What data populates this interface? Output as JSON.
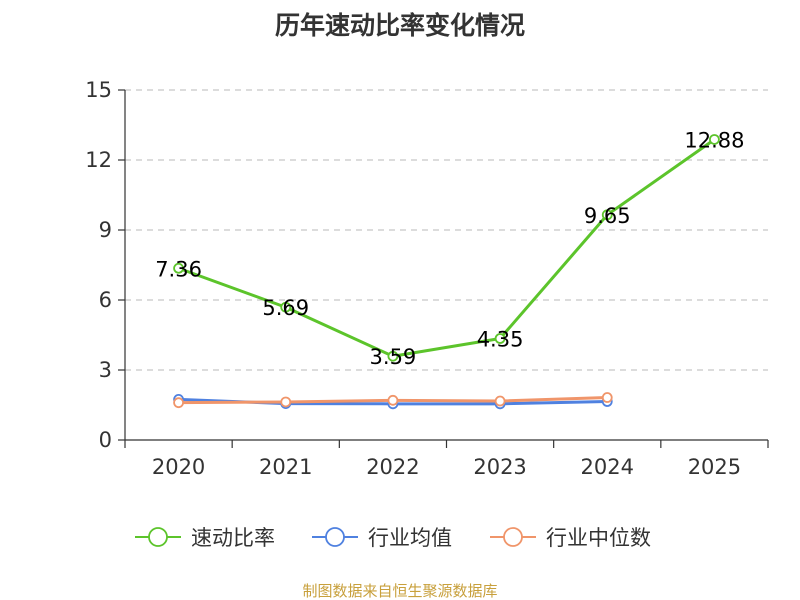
{
  "chart_data": {
    "type": "line",
    "title": "历年速动比率变化情况",
    "xlabel": "",
    "ylabel": "",
    "categories": [
      "2020",
      "2021",
      "2022",
      "2023",
      "2024",
      "2025"
    ],
    "ylim": [
      0,
      15
    ],
    "yticks": [
      0,
      3,
      6,
      9,
      12,
      15
    ],
    "grid": "horizontal-dashed",
    "legend_position": "bottom",
    "series": [
      {
        "name": "速动比率",
        "color": "#5cc42b",
        "values": [
          7.36,
          5.69,
          3.59,
          4.35,
          9.65,
          12.88
        ],
        "labels": [
          "7.36",
          "5.69",
          "3.59",
          "4.35",
          "9.65",
          "12.88"
        ]
      },
      {
        "name": "行业均值",
        "color": "#4f81e0",
        "values": [
          1.74,
          1.56,
          1.55,
          1.55,
          1.65,
          null
        ],
        "labels": null
      },
      {
        "name": "行业中位数",
        "color": "#f0956a",
        "values": [
          1.6,
          1.63,
          1.7,
          1.67,
          1.82,
          null
        ],
        "labels": null
      }
    ]
  },
  "footer": {
    "source": "制图数据来自恒生聚源数据库"
  }
}
